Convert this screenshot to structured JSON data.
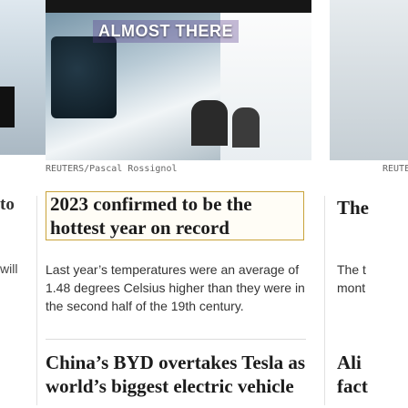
{
  "left": {
    "text_to": "to",
    "text_will": "will"
  },
  "main": {
    "image_sign_text": "ALMOST THERE",
    "image_credit": "REUTERS/Pascal Rossignol",
    "headline1": "2023 confirmed to be the hottest year on record",
    "summary1": "Last year’s temperatures were an average of 1.48 degrees Celsius higher than they were in the second half of the 19th century.",
    "headline2": "China’s BYD overtakes Tesla as world’s biggest electric vehicle"
  },
  "right": {
    "image_credit": "REUTE",
    "headline1": "The",
    "summary1_line1": "The t",
    "summary1_line2": "mont",
    "headline2_line1": "Ali",
    "headline2_line2": "fact"
  },
  "colors": {
    "highlight_border": "#c9a33a",
    "text": "#1b1b1b"
  }
}
